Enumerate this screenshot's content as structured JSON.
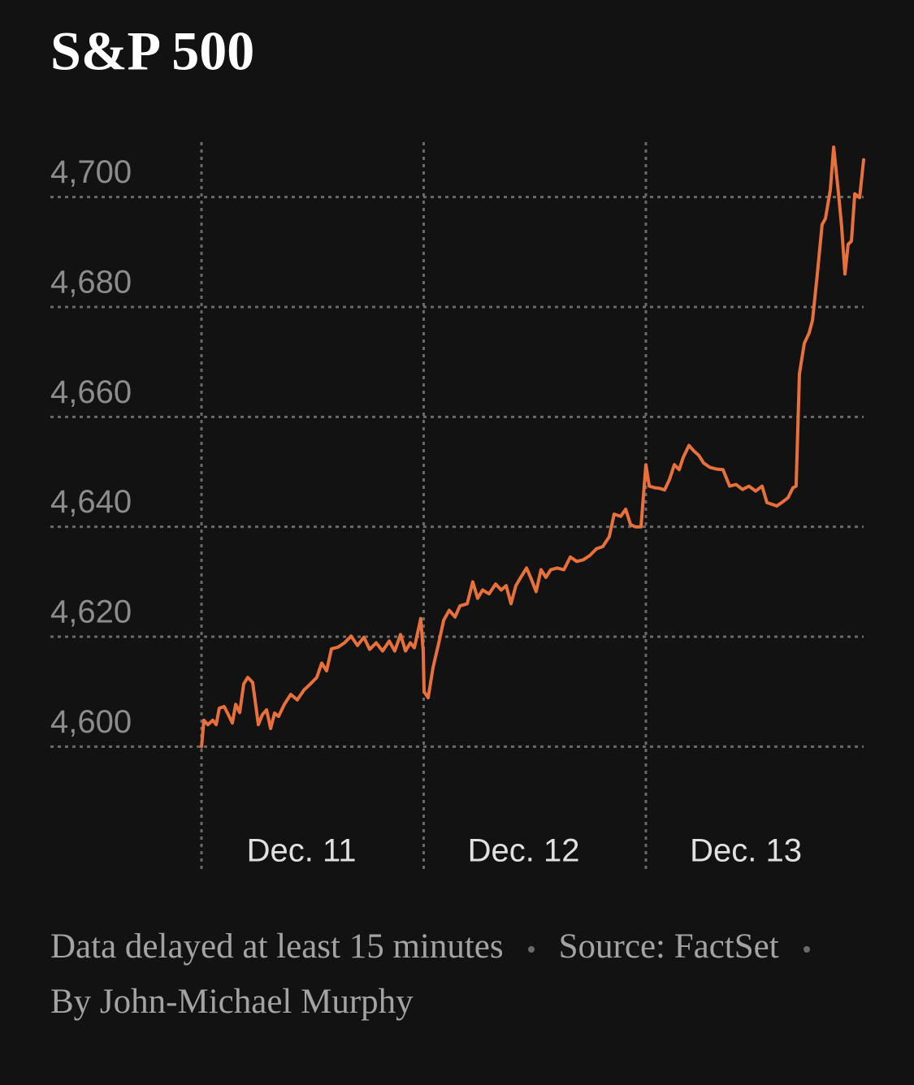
{
  "chart_data": {
    "type": "line",
    "title": "S&P 500",
    "color": "#e8703a",
    "grid": true,
    "xlim": [
      0,
      2.98
    ],
    "xticks": [
      {
        "value": 0,
        "label": "Dec. 11"
      },
      {
        "value": 1,
        "label": "Dec. 12"
      },
      {
        "value": 2,
        "label": "Dec. 13"
      }
    ],
    "ylim": [
      4577,
      4710
    ],
    "yticks": [
      {
        "value": 4600,
        "label": "4,600"
      },
      {
        "value": 4620,
        "label": "4,620"
      },
      {
        "value": 4640,
        "label": "4,640"
      },
      {
        "value": 4660,
        "label": "4,660"
      },
      {
        "value": 4680,
        "label": "4,680"
      },
      {
        "value": 4700,
        "label": "4,700"
      }
    ],
    "x": [
      0,
      0.011,
      0.029,
      0.051,
      0.066,
      0.08,
      0.102,
      0.121,
      0.139,
      0.154,
      0.172,
      0.19,
      0.208,
      0.23,
      0.241,
      0.256,
      0.274,
      0.293,
      0.311,
      0.329,
      0.347,
      0.373,
      0.402,
      0.431,
      0.461,
      0.49,
      0.519,
      0.541,
      0.563,
      0.585,
      0.614,
      0.644,
      0.673,
      0.702,
      0.731,
      0.757,
      0.786,
      0.815,
      0.845,
      0.87,
      0.896,
      0.918,
      0.94,
      0.958,
      0.987,
      0.998,
      1.002,
      1.02,
      1.042,
      1.068,
      1.09,
      1.115,
      1.141,
      1.163,
      1.196,
      1.221,
      1.243,
      1.265,
      1.294,
      1.324,
      1.349,
      1.371,
      1.393,
      1.415,
      1.437,
      1.463,
      1.484,
      1.506,
      1.528,
      1.55,
      1.572,
      1.601,
      1.631,
      1.66,
      1.689,
      1.718,
      1.748,
      1.777,
      1.806,
      1.835,
      1.857,
      1.887,
      1.909,
      1.931,
      1.952,
      1.978,
      2.0,
      2.015,
      2.04,
      2.062,
      2.084,
      2.106,
      2.128,
      2.15,
      2.168,
      2.194,
      2.216,
      2.238,
      2.26,
      2.289,
      2.318,
      2.347,
      2.377,
      2.406,
      2.435,
      2.464,
      2.494,
      2.523,
      2.545,
      2.567,
      2.589,
      2.611,
      2.64,
      2.662,
      2.676,
      2.691,
      2.713,
      2.735,
      2.75,
      2.771,
      2.793,
      2.808,
      2.83,
      2.845,
      2.867,
      2.881,
      2.896,
      2.91,
      2.925,
      2.94,
      2.962,
      2.98
    ],
    "values": [
      4600.0,
      4604.8,
      4604.0,
      4604.8,
      4604.0,
      4607.0,
      4607.3,
      4605.8,
      4604.3,
      4607.7,
      4606.2,
      4611.4,
      4612.6,
      4611.7,
      4608.5,
      4604.0,
      4605.8,
      4606.7,
      4603.3,
      4606.1,
      4605.5,
      4607.7,
      4609.5,
      4608.5,
      4610.3,
      4611.4,
      4612.6,
      4615.2,
      4613.8,
      4617.8,
      4618.1,
      4618.9,
      4620.1,
      4618.4,
      4619.9,
      4617.7,
      4618.9,
      4617.4,
      4619.2,
      4617.4,
      4620.4,
      4617.4,
      4618.9,
      4618.0,
      4623.3,
      4617.4,
      4610.0,
      4608.9,
      4614.4,
      4618.9,
      4623.0,
      4624.8,
      4623.6,
      4625.6,
      4626.0,
      4630.0,
      4627.0,
      4628.5,
      4627.8,
      4629.6,
      4628.5,
      4629.3,
      4626.0,
      4629.3,
      4630.8,
      4632.5,
      4630.5,
      4628.2,
      4632.2,
      4630.8,
      4632.2,
      4632.5,
      4632.2,
      4634.5,
      4633.7,
      4634.0,
      4634.8,
      4636.0,
      4636.4,
      4638.2,
      4642.3,
      4641.9,
      4643.2,
      4640.4,
      4640.0,
      4640.0,
      4651.3,
      4647.4,
      4647.1,
      4647.0,
      4646.7,
      4648.6,
      4651.3,
      4650.4,
      4652.6,
      4654.8,
      4653.8,
      4653.0,
      4651.6,
      4650.8,
      4650.5,
      4650.4,
      4647.4,
      4647.7,
      4646.8,
      4647.4,
      4646.5,
      4647.4,
      4644.4,
      4644.1,
      4643.8,
      4644.4,
      4645.3,
      4647.1,
      4647.4,
      4667.9,
      4673.4,
      4675.3,
      4677.6,
      4685.7,
      4695.0,
      4696.1,
      4701.3,
      4709.1,
      4700.6,
      4694.7,
      4686.0,
      4691.4,
      4692.0,
      4700.6,
      4699.9,
      4706.8
    ],
    "footer": [
      "Data delayed at least 15 minutes",
      "Source: FactSet",
      "By John-Michael Murphy"
    ]
  }
}
